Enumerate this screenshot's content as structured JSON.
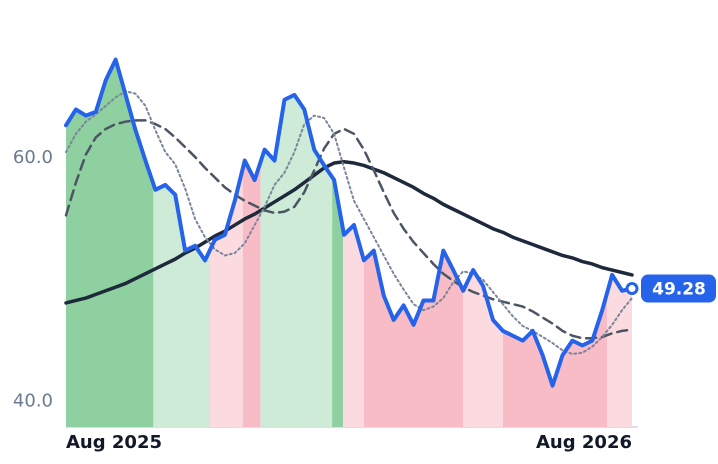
{
  "chart_data": {
    "type": "line",
    "categories": [
      "Aug 2025",
      null,
      null,
      null,
      null,
      null,
      null,
      null,
      null,
      null,
      null,
      null,
      null,
      null,
      null,
      null,
      null,
      null,
      null,
      null,
      null,
      null,
      null,
      null,
      null,
      null,
      null,
      null,
      null,
      null,
      null,
      null,
      null,
      null,
      null,
      null,
      null,
      null,
      null,
      null,
      null,
      null,
      null,
      null,
      null,
      null,
      null,
      null,
      null,
      null,
      null,
      null,
      null,
      null,
      null,
      null,
      null,
      "Aug 2026"
    ],
    "series": [
      {
        "color": "#1e293b",
        "style": "solid",
        "width": 3.5,
        "values": [
          48.1,
          48.3,
          48.5,
          48.8,
          49.1,
          49.4,
          49.7,
          50.1,
          50.5,
          50.9,
          51.3,
          51.7,
          52.2,
          52.6,
          53.1,
          53.6,
          54.0,
          54.5,
          55.0,
          55.4,
          55.9,
          56.4,
          56.9,
          57.4,
          58.0,
          58.6,
          59.2,
          59.6,
          59.7,
          59.6,
          59.4,
          59.1,
          58.8,
          58.4,
          58.0,
          57.6,
          57.1,
          56.7,
          56.2,
          55.8,
          55.4,
          55.0,
          54.6,
          54.2,
          53.9,
          53.5,
          53.2,
          52.9,
          52.6,
          52.3,
          52.0,
          51.8,
          51.5,
          51.3,
          51.0,
          50.8,
          50.6,
          50.4
        ]
      },
      {
        "color": "#4b5563",
        "style": "dashed",
        "width": 2.5,
        "values": [
          55.3,
          58.0,
          60.3,
          61.7,
          62.4,
          62.8,
          63.0,
          63.1,
          63.1,
          62.8,
          62.4,
          61.7,
          60.9,
          60.1,
          59.2,
          58.4,
          57.6,
          57.0,
          56.5,
          56.1,
          55.7,
          55.5,
          55.6,
          56.0,
          57.2,
          59.0,
          60.8,
          62.0,
          62.4,
          62.0,
          60.7,
          59.0,
          57.2,
          55.5,
          54.2,
          53.1,
          52.2,
          51.3,
          50.5,
          49.9,
          49.4,
          49.0,
          48.7,
          48.4,
          48.2,
          48.0,
          47.8,
          47.4,
          46.9,
          46.4,
          45.8,
          45.4,
          45.2,
          45.2,
          45.3,
          45.6,
          45.8,
          45.9
        ]
      },
      {
        "color": "#7a869a",
        "style": "dotted",
        "width": 2,
        "values": [
          60.5,
          62.0,
          63.0,
          63.6,
          64.3,
          65.0,
          65.5,
          65.3,
          64.3,
          62.3,
          60.5,
          59.5,
          57.5,
          55.0,
          53.5,
          52.5,
          52.0,
          52.2,
          53.0,
          54.5,
          56.0,
          57.8,
          58.8,
          60.5,
          62.8,
          63.5,
          63.3,
          62.0,
          59.2,
          56.5,
          55.0,
          53.5,
          52.0,
          50.5,
          49.2,
          48.0,
          47.5,
          47.8,
          48.5,
          49.8,
          50.7,
          50.5,
          50.0,
          49.0,
          48.0,
          47.0,
          46.2,
          45.8,
          45.3,
          44.8,
          44.2,
          43.9,
          44.0,
          44.5,
          45.3,
          46.3,
          47.5,
          48.5
        ]
      },
      {
        "color": "#2563eb",
        "style": "solid",
        "width": 4,
        "main": true,
        "values": [
          62.7,
          64.0,
          63.5,
          63.8,
          66.4,
          68.1,
          65.2,
          62.3,
          59.8,
          57.4,
          57.8,
          57.0,
          52.4,
          52.8,
          51.6,
          53.3,
          53.7,
          56.5,
          59.8,
          58.2,
          60.7,
          59.8,
          64.8,
          65.2,
          64.0,
          60.7,
          59.4,
          58.2,
          53.7,
          54.5,
          51.6,
          52.4,
          48.7,
          46.7,
          47.9,
          46.3,
          48.3,
          48.3,
          52.4,
          50.8,
          49.1,
          50.8,
          49.5,
          46.7,
          45.8,
          45.4,
          45.0,
          45.8,
          43.8,
          41.3,
          43.8,
          45.0,
          44.6,
          45.0,
          47.5,
          50.4,
          49.1,
          49.28
        ]
      }
    ],
    "zones": [
      {
        "from": 0,
        "to": 8.8,
        "color": "#8fd0a0"
      },
      {
        "from": 8.8,
        "to": 14.5,
        "color": "#cdebd7"
      },
      {
        "from": 14.5,
        "to": 17.8,
        "color": "#fcdbe0"
      },
      {
        "from": 17.8,
        "to": 19.6,
        "color": "#f8bcc7"
      },
      {
        "from": 19.6,
        "to": 26.8,
        "color": "#cdebd7"
      },
      {
        "from": 26.8,
        "to": 27.9,
        "color": "#8fd0a0"
      },
      {
        "from": 27.9,
        "to": 30,
        "color": "#fcdbe0"
      },
      {
        "from": 30,
        "to": 40,
        "color": "#f8bcc7"
      },
      {
        "from": 40,
        "to": 44,
        "color": "#fcdbe0"
      },
      {
        "from": 44,
        "to": 54.5,
        "color": "#f8bcc7"
      },
      {
        "from": 54.5,
        "to": 57,
        "color": "#fcdbe0"
      }
    ],
    "ylim": [
      37.9,
      73.0
    ],
    "yticks": [
      {
        "value": 40,
        "label": "40.0"
      },
      {
        "value": 60,
        "label": "60.0"
      }
    ]
  }
}
